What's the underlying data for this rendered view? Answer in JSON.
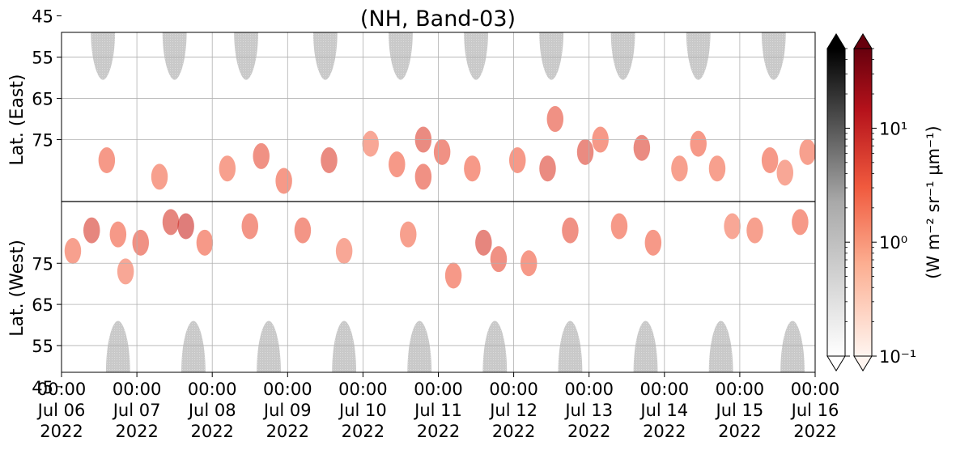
{
  "chart_data": {
    "type": "heatmap",
    "title": "(NH, Band-03)",
    "xlabel": "",
    "ylabel_top": "Lat. (East)",
    "ylabel_bottom": "Lat. (West)",
    "x_range_days": [
      0,
      10
    ],
    "x_ticks": [
      {
        "time": "00:00",
        "date": "Jul 06",
        "year": "2022"
      },
      {
        "time": "00:00",
        "date": "Jul 07",
        "year": "2022"
      },
      {
        "time": "00:00",
        "date": "Jul 08",
        "year": "2022"
      },
      {
        "time": "00:00",
        "date": "Jul 09",
        "year": "2022"
      },
      {
        "time": "00:00",
        "date": "Jul 10",
        "year": "2022"
      },
      {
        "time": "00:00",
        "date": "Jul 11",
        "year": "2022"
      },
      {
        "time": "00:00",
        "date": "Jul 12",
        "year": "2022"
      },
      {
        "time": "00:00",
        "date": "Jul 13",
        "year": "2022"
      },
      {
        "time": "00:00",
        "date": "Jul 14",
        "year": "2022"
      },
      {
        "time": "00:00",
        "date": "Jul 15",
        "year": "2022"
      },
      {
        "time": "00:00",
        "date": "Jul 16",
        "year": "2022"
      }
    ],
    "y_ticks_east": [
      "45",
      "55",
      "65",
      "75"
    ],
    "y_ticks_west": [
      "75",
      "65",
      "55",
      "45"
    ],
    "grid": true,
    "colorbar": {
      "label": "(W m⁻² sr⁻¹ μm⁻¹)",
      "scale": "log",
      "range": [
        0.1,
        50
      ],
      "ticks": [
        {
          "value": 0.1,
          "label": "10⁻¹"
        },
        {
          "value": 1,
          "label": "10⁰"
        },
        {
          "value": 10,
          "label": "10¹"
        }
      ],
      "daylight_colormap": "Greys",
      "aurora_colormap": "Reds",
      "extend": "both"
    },
    "daylight_lobes_east": [
      0.55,
      1.5,
      2.45,
      3.5,
      4.5,
      5.5,
      6.5,
      7.45,
      8.45,
      9.45
    ],
    "daylight_lobes_west": [
      0.75,
      1.75,
      2.75,
      3.75,
      4.75,
      5.75,
      6.75,
      7.75,
      8.75,
      9.7
    ],
    "aurora_blobs": [
      {
        "day": 0.4,
        "lat": -83,
        "v": 6
      },
      {
        "day": 0.15,
        "lat": -78,
        "v": 2.5
      },
      {
        "day": 0.6,
        "lat": 80,
        "v": 3
      },
      {
        "day": 0.75,
        "lat": -82,
        "v": 3
      },
      {
        "day": 0.85,
        "lat": -73,
        "v": 2
      },
      {
        "day": 1.05,
        "lat": -80,
        "v": 4
      },
      {
        "day": 1.3,
        "lat": 84,
        "v": 2.5
      },
      {
        "day": 1.45,
        "lat": -85,
        "v": 6
      },
      {
        "day": 1.65,
        "lat": -84,
        "v": 8
      },
      {
        "day": 1.9,
        "lat": -80,
        "v": 3
      },
      {
        "day": 2.2,
        "lat": 82,
        "v": 2.5
      },
      {
        "day": 2.5,
        "lat": -84,
        "v": 3.5
      },
      {
        "day": 2.65,
        "lat": 79,
        "v": 4
      },
      {
        "day": 2.95,
        "lat": 85,
        "v": 3
      },
      {
        "day": 3.2,
        "lat": -83,
        "v": 3.5
      },
      {
        "day": 3.55,
        "lat": 80,
        "v": 5
      },
      {
        "day": 3.75,
        "lat": -78,
        "v": 2
      },
      {
        "day": 4.1,
        "lat": 76,
        "v": 2
      },
      {
        "day": 4.45,
        "lat": 81,
        "v": 3
      },
      {
        "day": 4.6,
        "lat": -82,
        "v": 2.5
      },
      {
        "day": 4.8,
        "lat": 84,
        "v": 4
      },
      {
        "day": 4.8,
        "lat": 75,
        "v": 5
      },
      {
        "day": 5.05,
        "lat": 78,
        "v": 4
      },
      {
        "day": 5.2,
        "lat": -72,
        "v": 3
      },
      {
        "day": 5.45,
        "lat": 82,
        "v": 3
      },
      {
        "day": 5.6,
        "lat": -80,
        "v": 6
      },
      {
        "day": 5.8,
        "lat": -76,
        "v": 4
      },
      {
        "day": 6.05,
        "lat": 80,
        "v": 3
      },
      {
        "day": 6.2,
        "lat": -75,
        "v": 3
      },
      {
        "day": 6.45,
        "lat": 82,
        "v": 5
      },
      {
        "day": 6.55,
        "lat": 70,
        "v": 4
      },
      {
        "day": 6.75,
        "lat": -83,
        "v": 4
      },
      {
        "day": 6.95,
        "lat": 78,
        "v": 5
      },
      {
        "day": 7.15,
        "lat": 75,
        "v": 3
      },
      {
        "day": 7.4,
        "lat": -84,
        "v": 3
      },
      {
        "day": 7.7,
        "lat": 77,
        "v": 5
      },
      {
        "day": 7.85,
        "lat": -80,
        "v": 3
      },
      {
        "day": 8.2,
        "lat": 82,
        "v": 2.5
      },
      {
        "day": 8.45,
        "lat": 76,
        "v": 3
      },
      {
        "day": 8.7,
        "lat": 82,
        "v": 2.5
      },
      {
        "day": 8.9,
        "lat": -84,
        "v": 2
      },
      {
        "day": 9.2,
        "lat": -83,
        "v": 2.5
      },
      {
        "day": 9.4,
        "lat": 80,
        "v": 3
      },
      {
        "day": 9.6,
        "lat": 83,
        "v": 2
      },
      {
        "day": 9.9,
        "lat": 78,
        "v": 2.5
      },
      {
        "day": 9.8,
        "lat": -85,
        "v": 3
      }
    ]
  }
}
